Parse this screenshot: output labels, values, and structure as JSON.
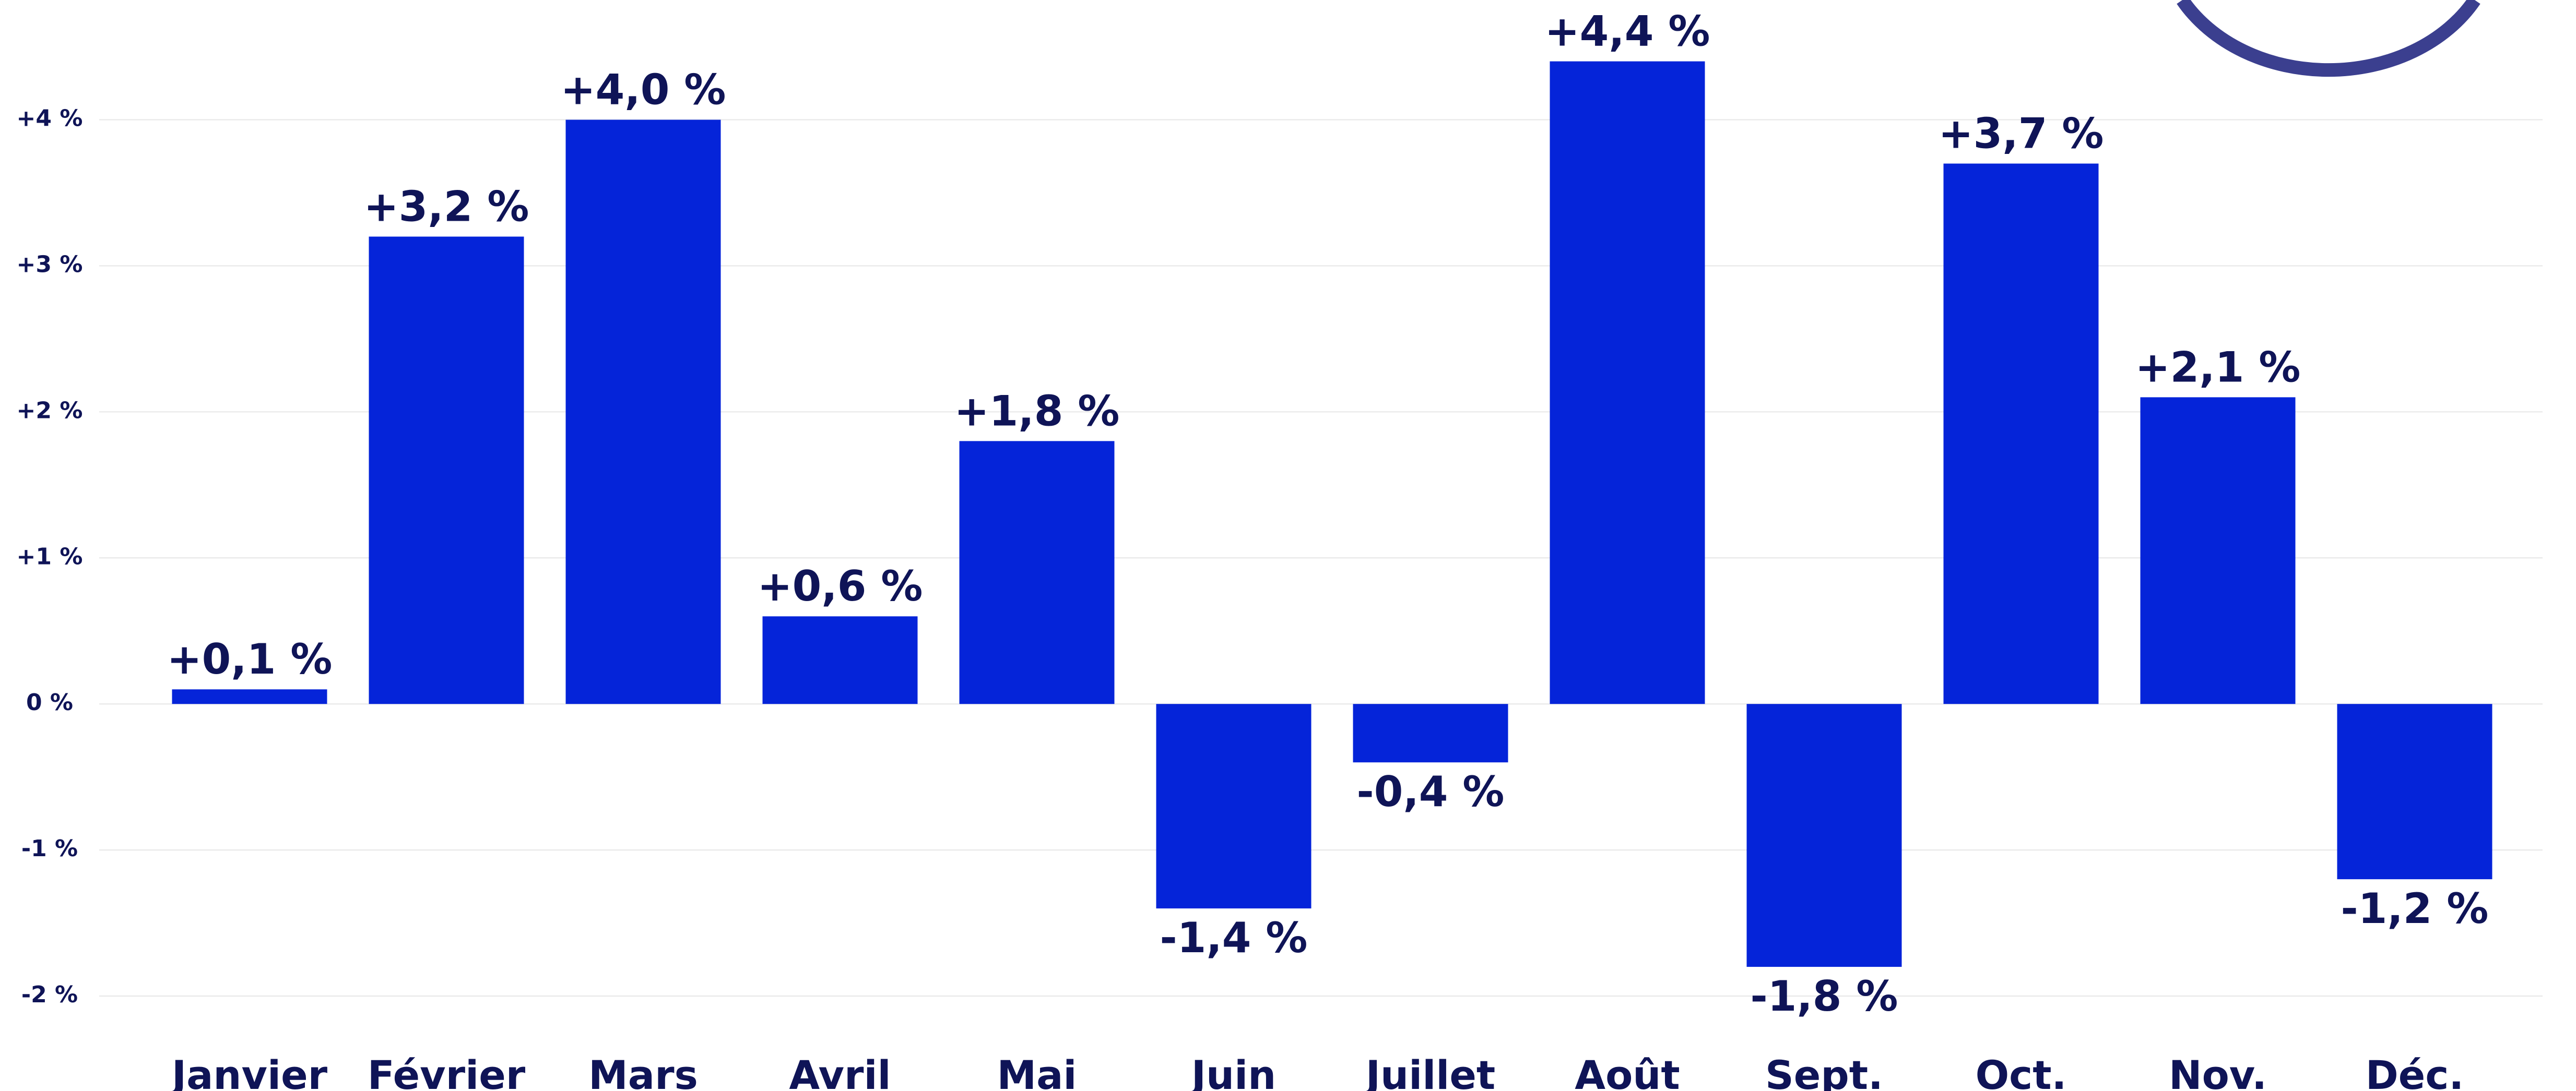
{
  "chart_data": {
    "type": "bar",
    "categories": [
      "Janvier",
      "Février",
      "Mars",
      "Avril",
      "Mai",
      "Juin",
      "Juillet",
      "Août",
      "Sept.",
      "Oct.",
      "Nov.",
      "Déc."
    ],
    "values": [
      0.1,
      3.2,
      4.0,
      0.6,
      1.8,
      -1.4,
      -0.4,
      4.4,
      -1.8,
      3.7,
      2.1,
      -1.2
    ],
    "value_labels": [
      "+0,1 %",
      "+3,2 %",
      "+4,0 %",
      "+0,6 %",
      "+1,8 %",
      "-1,4 %",
      "-0,4 %",
      "+4,4 %",
      "-1,8 %",
      "+3,7 %",
      "+2,1 %",
      "-1,2 %"
    ],
    "color": "#0524d9",
    "ylim": [
      -2.65,
      4.82
    ],
    "yticks": [
      {
        "value": -2,
        "label": "-2 %"
      },
      {
        "value": -1,
        "label": "-1 %"
      },
      {
        "value": 0,
        "label": "0 %"
      },
      {
        "value": 1,
        "label": "+1 %"
      },
      {
        "value": 2,
        "label": "+2 %"
      },
      {
        "value": 3,
        "label": "+3 %"
      },
      {
        "value": 4,
        "label": "+4 %"
      }
    ],
    "grid": true
  }
}
